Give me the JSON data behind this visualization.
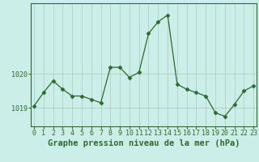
{
  "x": [
    0,
    1,
    2,
    3,
    4,
    5,
    6,
    7,
    8,
    9,
    10,
    11,
    12,
    13,
    14,
    15,
    16,
    17,
    18,
    19,
    20,
    21,
    22,
    23
  ],
  "y": [
    1019.05,
    1019.45,
    1019.8,
    1019.55,
    1019.35,
    1019.35,
    1019.25,
    1019.15,
    1020.2,
    1020.2,
    1019.9,
    1020.05,
    1021.2,
    1021.55,
    1021.75,
    1019.7,
    1019.55,
    1019.45,
    1019.35,
    1018.85,
    1018.75,
    1019.1,
    1019.5,
    1019.65
  ],
  "line_color": "#2d6a2d",
  "marker": "D",
  "marker_size": 2.5,
  "bg_color": "#cceee8",
  "grid_color": "#b0c8c4",
  "xlabel": "Graphe pression niveau de la mer (hPa)",
  "xlabel_fontsize": 7.5,
  "ylabel_labels": [
    "1019",
    "1020"
  ],
  "ylabel_vals": [
    1019,
    1020
  ],
  "ylim": [
    1018.45,
    1022.1
  ],
  "xlim": [
    -0.3,
    23.3
  ],
  "tick_fontsize": 6.0,
  "spine_color": "#2d6a2d"
}
